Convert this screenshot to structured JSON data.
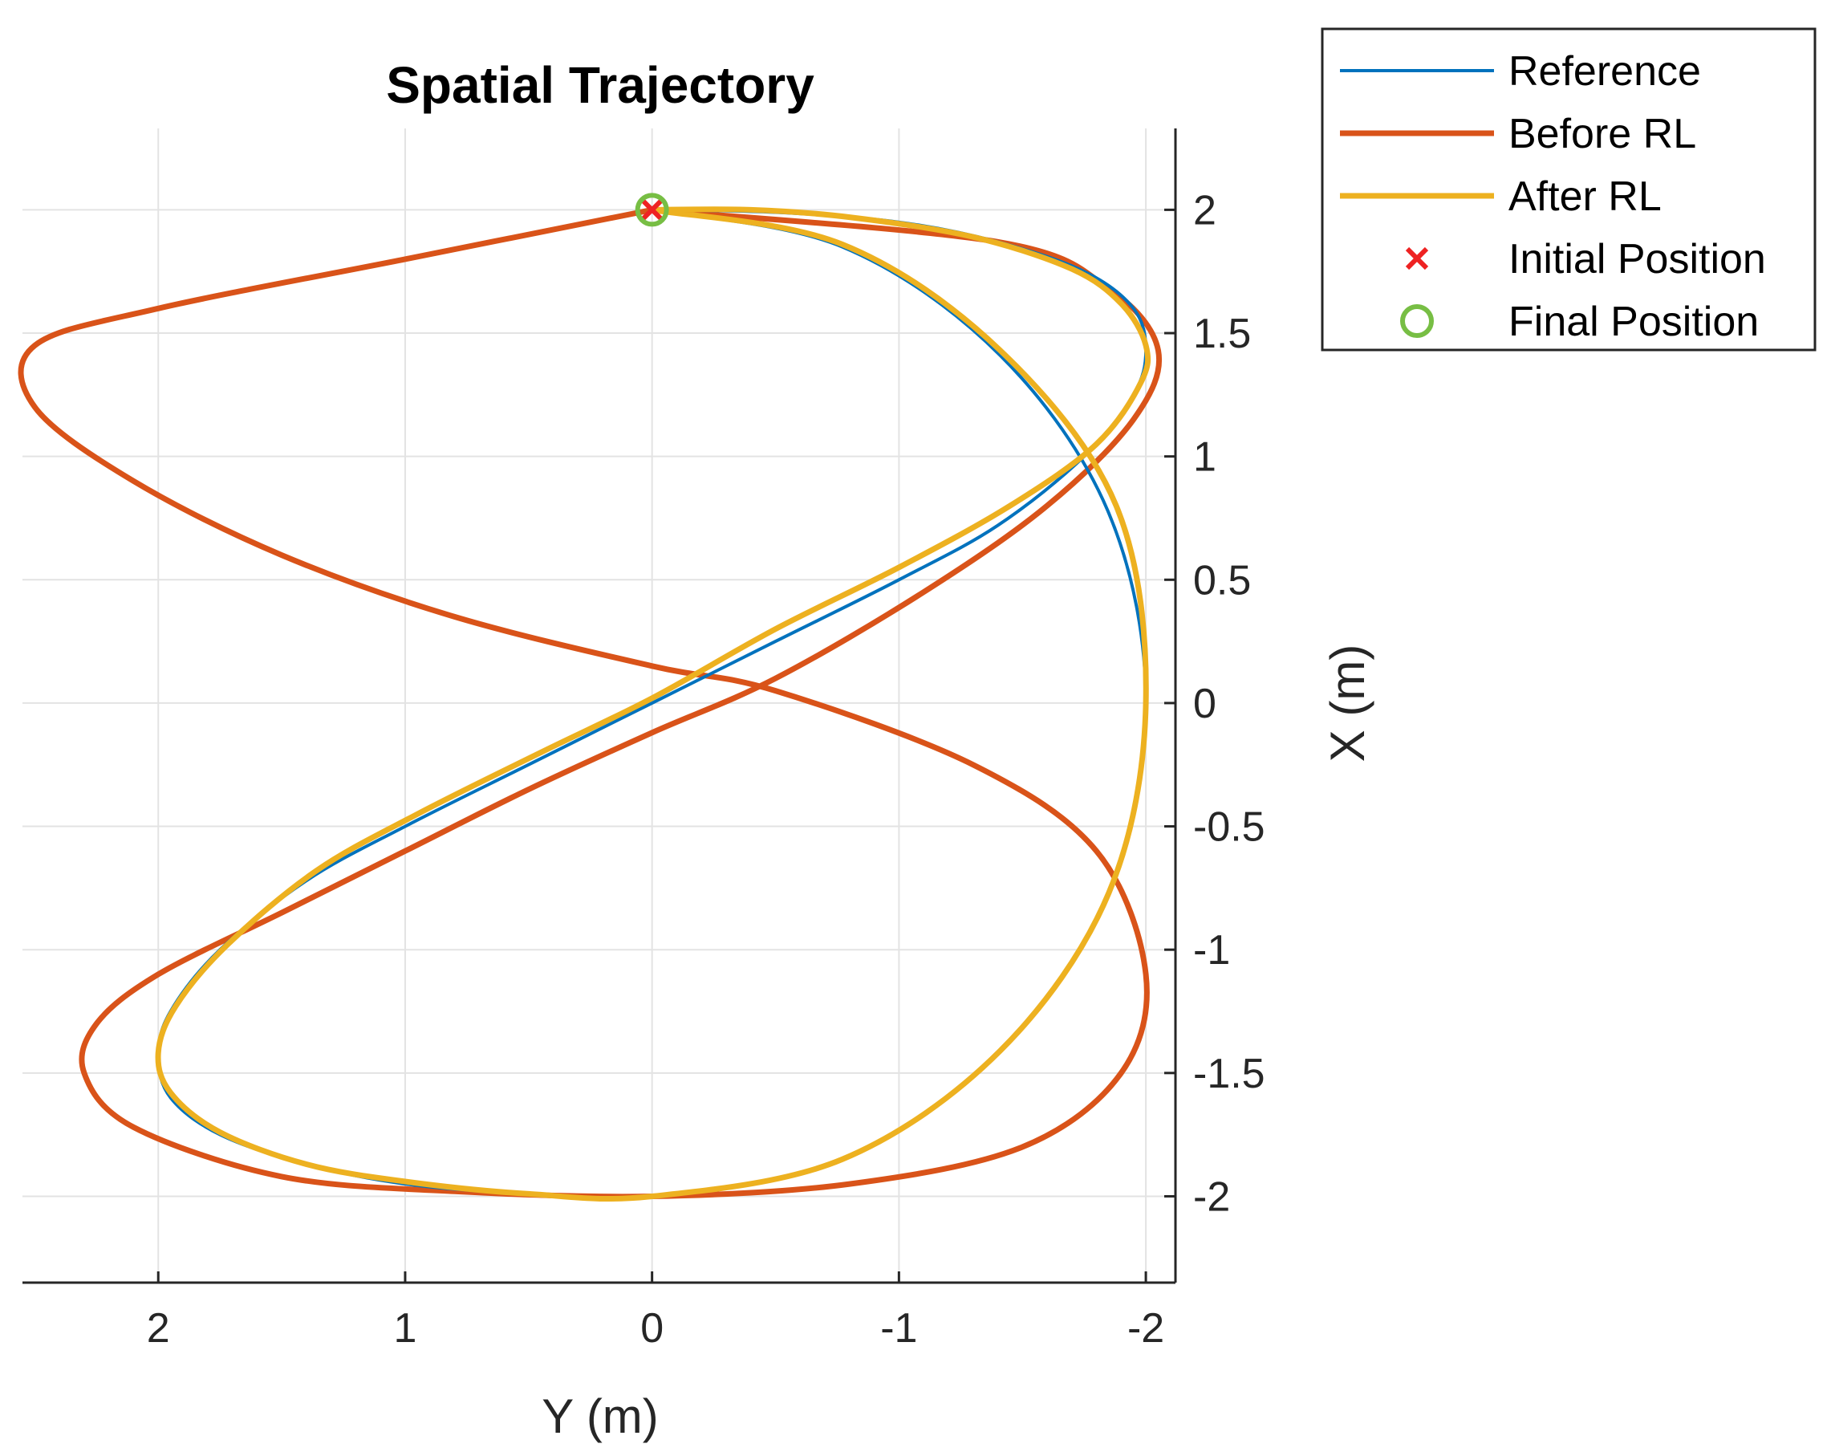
{
  "chart_data": {
    "type": "line",
    "title": "Spatial Trajectory",
    "xlabel": "Y (m)",
    "ylabel": "X (m)",
    "xlim": [
      2.55,
      -2.12
    ],
    "ylim": [
      -2.35,
      2.33
    ],
    "x_reversed": true,
    "y_axis_side": "right",
    "x_ticks": [
      2,
      1,
      0,
      -1,
      -2
    ],
    "x_tick_labels": [
      "2",
      "1",
      "0",
      "-1",
      "-2"
    ],
    "y_ticks": [
      2,
      1.5,
      1,
      0.5,
      0,
      -0.5,
      -1,
      -1.5,
      -2
    ],
    "y_tick_labels": [
      "2",
      "1.5",
      "1",
      "0.5",
      "0",
      "-0.5",
      "-1",
      "-1.5",
      "-2"
    ],
    "grid": true,
    "legend_position": "outside top-right",
    "series": [
      {
        "name": "Reference",
        "color": "#0072BD",
        "marker": "none",
        "points": [
          [
            0.0,
            2.0
          ],
          [
            -0.77,
            1.85
          ],
          [
            -1.41,
            1.41
          ],
          [
            -1.85,
            0.77
          ],
          [
            -2.0,
            0.0
          ],
          [
            -1.85,
            -0.77
          ],
          [
            -1.41,
            -1.41
          ],
          [
            -0.77,
            -1.85
          ],
          [
            0.0,
            -2.0
          ],
          [
            0.5,
            -1.99
          ],
          [
            1.0,
            -1.95
          ],
          [
            1.4,
            -1.87
          ],
          [
            1.75,
            -1.75
          ],
          [
            1.95,
            -1.6
          ],
          [
            2.0,
            -1.43
          ],
          [
            1.95,
            -1.25
          ],
          [
            1.75,
            -1.0
          ],
          [
            1.4,
            -0.72
          ],
          [
            1.0,
            -0.5
          ],
          [
            0.5,
            -0.25
          ],
          [
            0.0,
            0.0
          ],
          [
            -0.5,
            0.25
          ],
          [
            -1.0,
            0.5
          ],
          [
            -1.4,
            0.72
          ],
          [
            -1.75,
            1.0
          ],
          [
            -1.95,
            1.25
          ],
          [
            -2.0,
            1.43
          ],
          [
            -1.95,
            1.6
          ],
          [
            -1.75,
            1.75
          ],
          [
            -1.4,
            1.87
          ],
          [
            -1.0,
            1.95
          ],
          [
            -0.5,
            1.99
          ],
          [
            0.0,
            2.0
          ]
        ]
      },
      {
        "name": "Before RL",
        "color": "#D95319",
        "marker": "none",
        "points": [
          [
            0.0,
            2.0
          ],
          [
            -1.4,
            1.87
          ],
          [
            -1.85,
            1.68
          ],
          [
            -2.05,
            1.43
          ],
          [
            -1.95,
            1.15
          ],
          [
            -1.6,
            0.8
          ],
          [
            -1.1,
            0.45
          ],
          [
            -0.5,
            0.1
          ],
          [
            0.0,
            -0.12
          ],
          [
            0.5,
            -0.35
          ],
          [
            1.0,
            -0.6
          ],
          [
            1.5,
            -0.85
          ],
          [
            2.0,
            -1.1
          ],
          [
            2.25,
            -1.3
          ],
          [
            2.3,
            -1.5
          ],
          [
            2.1,
            -1.72
          ],
          [
            1.5,
            -1.92
          ],
          [
            0.8,
            -1.98
          ],
          [
            0.0,
            -2.0
          ],
          [
            -0.8,
            -1.95
          ],
          [
            -1.5,
            -1.8
          ],
          [
            -1.9,
            -1.5
          ],
          [
            -2.0,
            -1.1
          ],
          [
            -1.8,
            -0.6
          ],
          [
            -1.3,
            -0.25
          ],
          [
            -0.5,
            0.05
          ],
          [
            0.0,
            0.15
          ],
          [
            0.8,
            0.35
          ],
          [
            1.5,
            0.6
          ],
          [
            2.1,
            0.9
          ],
          [
            2.5,
            1.2
          ],
          [
            2.5,
            1.45
          ],
          [
            2.0,
            1.6
          ],
          [
            1.0,
            1.8
          ],
          [
            0.0,
            2.0
          ]
        ]
      },
      {
        "name": "After RL",
        "color": "#EDB120",
        "marker": "none",
        "points": [
          [
            0.0,
            2.0
          ],
          [
            -0.77,
            1.86
          ],
          [
            -1.41,
            1.43
          ],
          [
            -1.88,
            0.8
          ],
          [
            -2.0,
            0.0
          ],
          [
            -1.85,
            -0.77
          ],
          [
            -1.41,
            -1.41
          ],
          [
            -0.77,
            -1.85
          ],
          [
            0.0,
            -2.0
          ],
          [
            0.5,
            -1.99
          ],
          [
            1.0,
            -1.94
          ],
          [
            1.4,
            -1.87
          ],
          [
            1.75,
            -1.74
          ],
          [
            1.95,
            -1.58
          ],
          [
            2.0,
            -1.42
          ],
          [
            1.93,
            -1.23
          ],
          [
            1.72,
            -0.98
          ],
          [
            1.36,
            -0.68
          ],
          [
            0.95,
            -0.45
          ],
          [
            0.45,
            -0.2
          ],
          [
            0.0,
            0.02
          ],
          [
            -0.5,
            0.3
          ],
          [
            -1.0,
            0.55
          ],
          [
            -1.45,
            0.8
          ],
          [
            -1.8,
            1.05
          ],
          [
            -1.98,
            1.3
          ],
          [
            -2.0,
            1.45
          ],
          [
            -1.9,
            1.62
          ],
          [
            -1.7,
            1.76
          ],
          [
            -1.3,
            1.89
          ],
          [
            -0.8,
            1.97
          ],
          [
            -0.4,
            2.0
          ],
          [
            0.0,
            2.0
          ]
        ]
      },
      {
        "name": "Initial Position",
        "color": "#EE2222",
        "marker": "x",
        "points": [
          [
            0.0,
            2.0
          ]
        ]
      },
      {
        "name": "Final Position",
        "color": "#77BE44",
        "marker": "o",
        "points": [
          [
            0.0,
            2.0
          ]
        ]
      }
    ]
  }
}
